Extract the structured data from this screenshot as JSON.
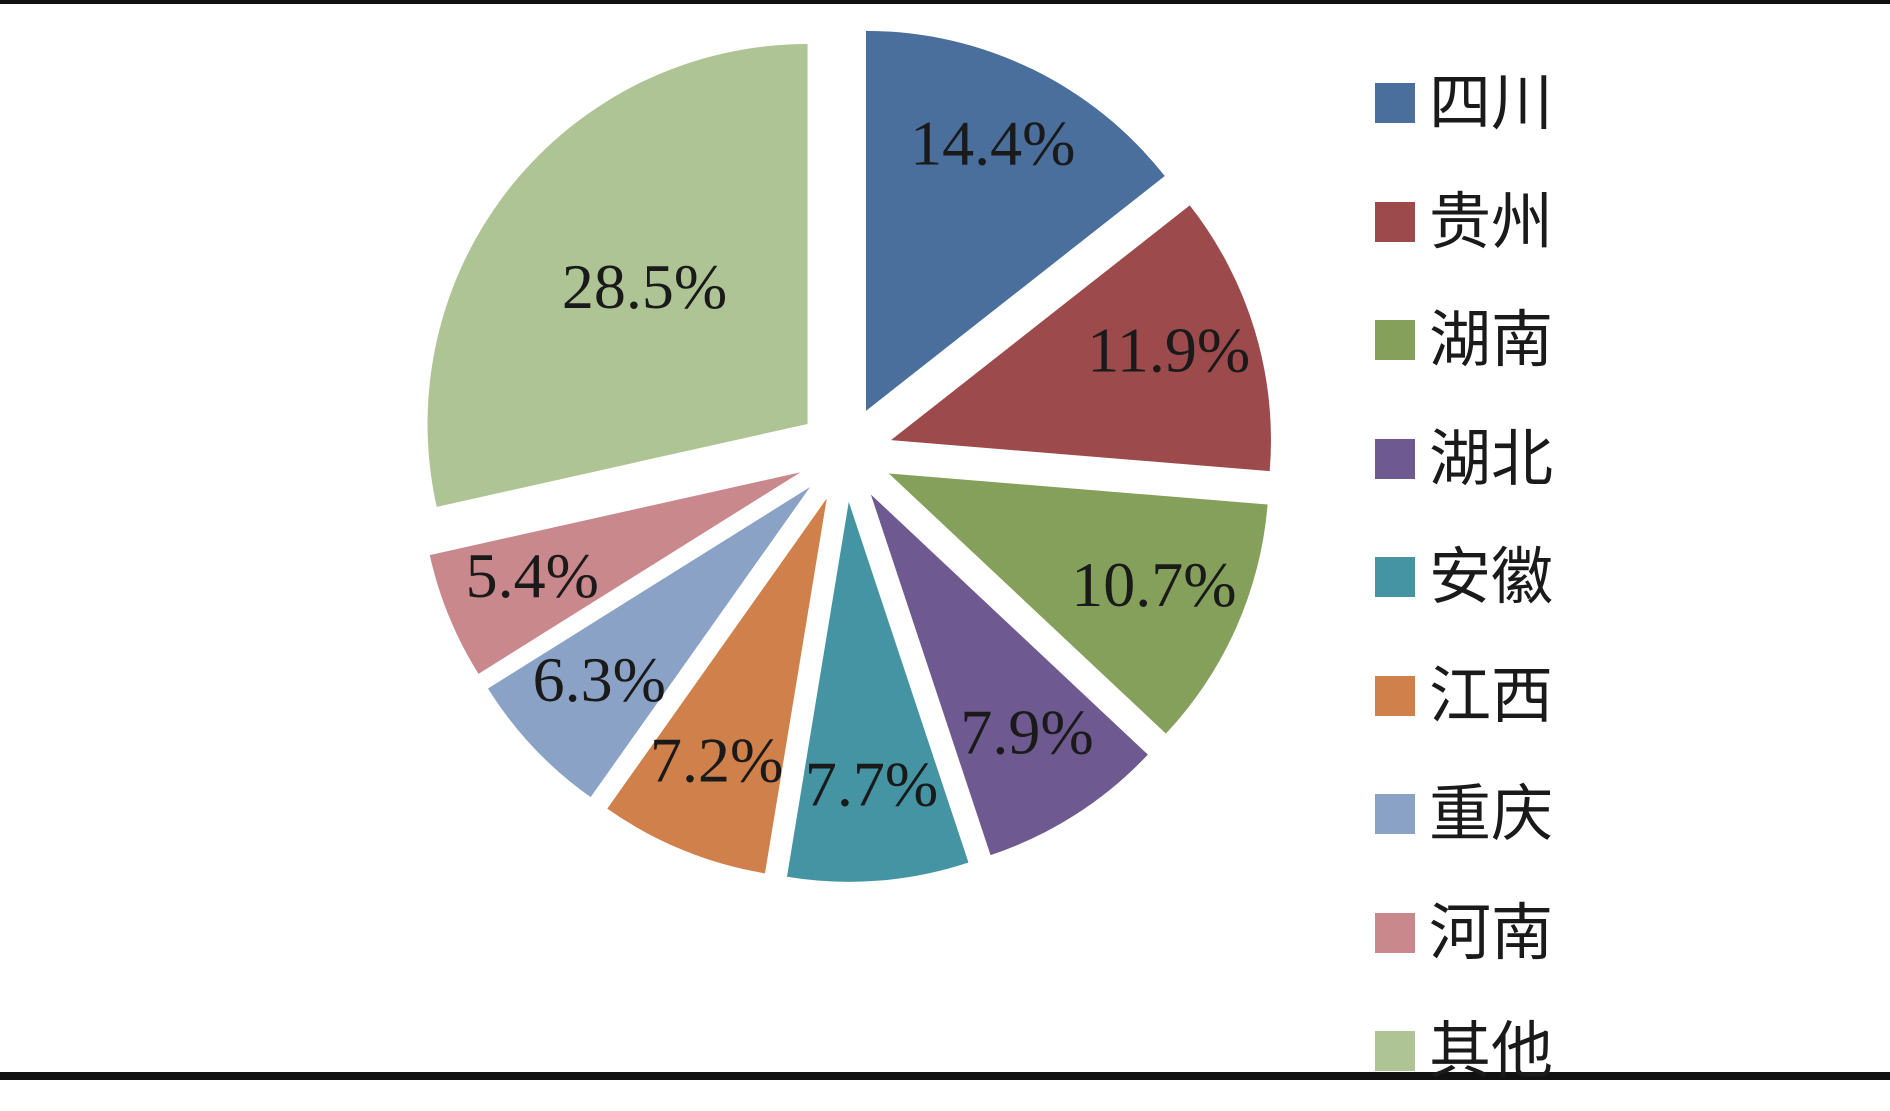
{
  "chart_data": {
    "type": "pie",
    "title": "",
    "series": [
      {
        "values": [
          14.4,
          11.9,
          10.7,
          7.9,
          7.7,
          7.2,
          6.3,
          5.4,
          28.5
        ]
      }
    ],
    "categories": [
      "四川",
      "贵州",
      "湖南",
      "湖北",
      "安徽",
      "江西",
      "重庆",
      "河南",
      "其他"
    ],
    "data_labels": [
      "14.4%",
      "11.9%",
      "10.7%",
      "7.9%",
      "7.7%",
      "7.2%",
      "6.3%",
      "5.4%",
      "28.5%"
    ],
    "colors": [
      "#4a6f9c",
      "#9c4a4c",
      "#84a05a",
      "#6e5a90",
      "#4594a4",
      "#d0804a",
      "#8aa2c6",
      "#c8888c",
      "#aec494"
    ],
    "exploded": true,
    "legend_position": "right"
  }
}
